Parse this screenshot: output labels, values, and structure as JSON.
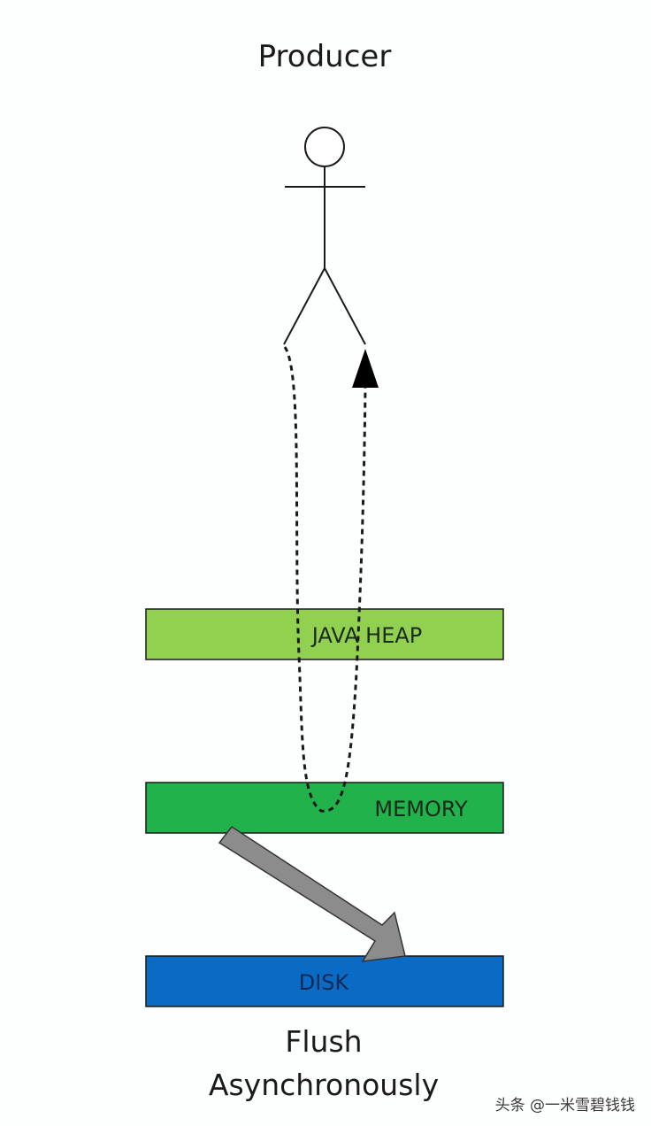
{
  "title": "Producer",
  "layers": [
    {
      "id": "java-heap",
      "label": "JAVA HEAP",
      "color": "#92d050"
    },
    {
      "id": "memory",
      "label": "MEMORY",
      "color": "#21b24b"
    },
    {
      "id": "disk",
      "label": "DISK",
      "color": "#0a6ac4"
    }
  ],
  "caption": {
    "line1": "Flush",
    "line2": "Asynchronously"
  },
  "colors": {
    "background": "#fdfefe",
    "stroke": "#1a1a1a",
    "flush_arrow": "#8c8c8c"
  },
  "watermark": "头条 @一米雪碧钱钱"
}
